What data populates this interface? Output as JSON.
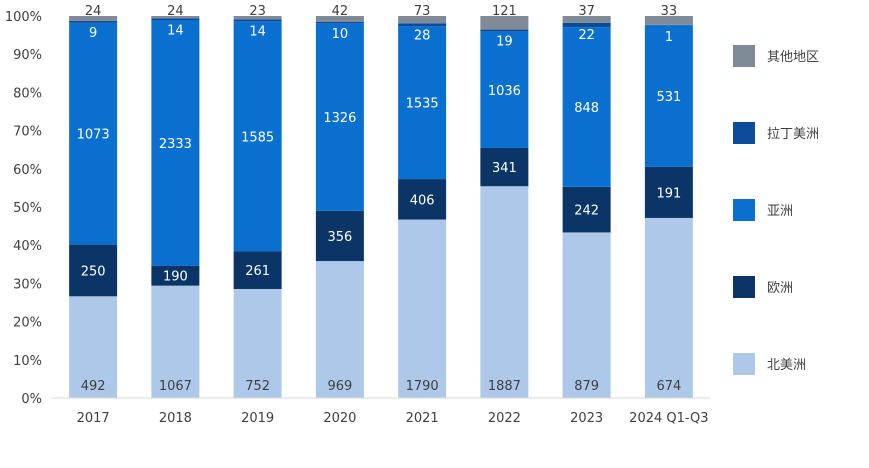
{
  "chart_data": {
    "type": "bar",
    "stacked": true,
    "normalized": true,
    "categories": [
      "2017",
      "2018",
      "2019",
      "2020",
      "2021",
      "2022",
      "2023",
      "2024 Q1-Q3"
    ],
    "y_ticks": [
      "0%",
      "10%",
      "20%",
      "30%",
      "40%",
      "50%",
      "60%",
      "70%",
      "80%",
      "90%",
      "100%"
    ],
    "ylim": [
      0,
      100
    ],
    "grid": false,
    "legend_position": "right",
    "series": [
      {
        "name": "北美洲",
        "color": "#aec8e9",
        "label_color": "#404040",
        "values": [
          492,
          1067,
          752,
          969,
          1790,
          1887,
          879,
          674
        ]
      },
      {
        "name": "欧洲",
        "color": "#0b3566",
        "label_color": "#ffffff",
        "values": [
          250,
          190,
          261,
          356,
          406,
          341,
          242,
          191
        ]
      },
      {
        "name": "亚洲",
        "color": "#0a70d0",
        "label_color": "#ffffff",
        "values": [
          1073,
          2333,
          1585,
          1326,
          1535,
          1036,
          848,
          531
        ]
      },
      {
        "name": "拉丁美洲",
        "color": "#0c4a9a",
        "label_color": "#ffffff",
        "values": [
          9,
          14,
          14,
          10,
          28,
          19,
          22,
          1
        ]
      },
      {
        "name": "其他地区",
        "color": "#808b98",
        "label_color": "#404040",
        "values": [
          24,
          24,
          23,
          42,
          73,
          121,
          37,
          33
        ]
      }
    ]
  }
}
